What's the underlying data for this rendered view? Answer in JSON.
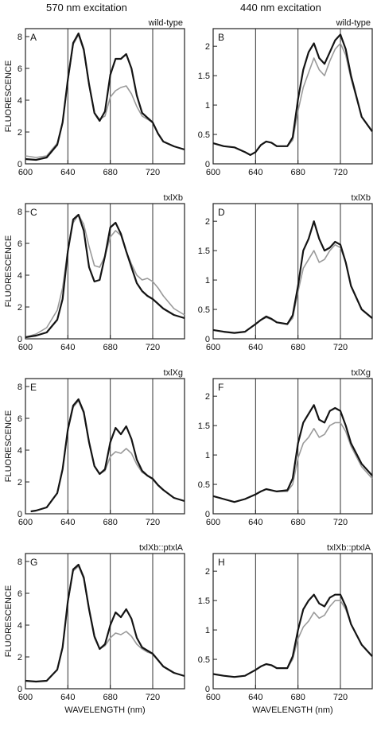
{
  "column_titles": {
    "left": "570 nm excitation",
    "right": "440 nm excitation"
  },
  "colors": {
    "dark_trace": "#141414",
    "light_trace": "#9a9a9a",
    "frame": "#222222"
  },
  "chart_data": [
    {
      "panel": "A",
      "strain": "wild-type",
      "type": "line",
      "xlim": [
        600,
        750
      ],
      "ylim": [
        0,
        8.5
      ],
      "xticks": [
        "600",
        "640",
        "680",
        "720"
      ],
      "yticks": [
        "0",
        "2",
        "4",
        "6",
        "8"
      ],
      "ylabel": "FLUORESCENCE",
      "xlabel": "",
      "vlines": [
        640,
        680,
        720
      ],
      "series": [
        {
          "x": [
            600,
            610,
            620,
            630,
            635,
            640,
            645,
            650,
            655,
            660,
            665,
            670,
            675,
            680,
            685,
            690,
            695,
            700,
            705,
            710,
            715,
            720,
            725,
            730,
            740,
            750
          ],
          "y": [
            0.3,
            0.25,
            0.4,
            1.2,
            2.6,
            5.3,
            7.6,
            8.2,
            7.2,
            5.0,
            3.2,
            2.7,
            3.3,
            5.6,
            6.6,
            6.6,
            6.9,
            6.0,
            4.3,
            3.2,
            2.9,
            2.6,
            1.9,
            1.4,
            1.1,
            0.9
          ]
        },
        {
          "x": [
            600,
            610,
            620,
            630,
            635,
            640,
            645,
            650,
            655,
            660,
            665,
            670,
            675,
            680,
            685,
            690,
            695,
            700,
            705,
            710,
            715,
            720,
            725,
            730,
            740,
            750
          ],
          "y": [
            0.5,
            0.4,
            0.5,
            1.3,
            2.6,
            5.2,
            7.5,
            8.1,
            7.1,
            4.9,
            3.2,
            2.8,
            3.0,
            4.2,
            4.6,
            4.8,
            4.9,
            4.4,
            3.6,
            3.0,
            2.8,
            2.6,
            1.9,
            1.4,
            1.1,
            0.9
          ]
        }
      ]
    },
    {
      "panel": "B",
      "strain": "wild-type",
      "type": "line",
      "xlim": [
        600,
        750
      ],
      "ylim": [
        0,
        2.3
      ],
      "xticks": [
        "600",
        "640",
        "680",
        "720"
      ],
      "yticks": [
        "0",
        "0.5",
        "1",
        "1.5",
        "2"
      ],
      "ylabel": "",
      "xlabel": "",
      "vlines": [
        640,
        680,
        720
      ],
      "series": [
        {
          "x": [
            600,
            610,
            620,
            630,
            635,
            640,
            645,
            650,
            655,
            660,
            670,
            675,
            680,
            685,
            690,
            695,
            700,
            705,
            710,
            715,
            720,
            725,
            730,
            740,
            750
          ],
          "y": [
            0.35,
            0.3,
            0.28,
            0.2,
            0.15,
            0.2,
            0.32,
            0.38,
            0.36,
            0.3,
            0.3,
            0.45,
            1.1,
            1.6,
            1.9,
            2.05,
            1.8,
            1.7,
            1.9,
            2.1,
            2.2,
            1.95,
            1.5,
            0.8,
            0.55
          ]
        },
        {
          "x": [
            600,
            610,
            620,
            630,
            635,
            640,
            645,
            650,
            655,
            660,
            670,
            675,
            680,
            685,
            690,
            695,
            700,
            705,
            710,
            715,
            720,
            725,
            730,
            740,
            750
          ],
          "y": [
            0.35,
            0.3,
            0.28,
            0.2,
            0.15,
            0.2,
            0.32,
            0.38,
            0.36,
            0.3,
            0.3,
            0.4,
            0.9,
            1.3,
            1.55,
            1.8,
            1.6,
            1.5,
            1.75,
            1.95,
            2.05,
            1.85,
            1.45,
            0.8,
            0.55
          ]
        }
      ]
    },
    {
      "panel": "C",
      "strain": "txlXb",
      "type": "line",
      "xlim": [
        600,
        750
      ],
      "ylim": [
        0,
        8.5
      ],
      "xticks": [
        "600",
        "640",
        "680",
        "720"
      ],
      "yticks": [
        "0",
        "2",
        "4",
        "6",
        "8"
      ],
      "ylabel": "FLUORESCENCE",
      "xlabel": "",
      "vlines": [
        640,
        680,
        720
      ],
      "series": [
        {
          "x": [
            600,
            610,
            620,
            630,
            635,
            640,
            645,
            650,
            655,
            660,
            665,
            670,
            675,
            680,
            685,
            690,
            695,
            700,
            705,
            710,
            715,
            720,
            725,
            730,
            740,
            750
          ],
          "y": [
            0.1,
            0.2,
            0.4,
            1.2,
            2.5,
            5.5,
            7.5,
            7.8,
            6.8,
            4.5,
            3.6,
            3.7,
            5.2,
            7.0,
            7.3,
            6.6,
            5.5,
            4.5,
            3.5,
            3.0,
            2.7,
            2.5,
            2.2,
            1.9,
            1.5,
            1.3
          ]
        },
        {
          "x": [
            600,
            610,
            620,
            630,
            635,
            640,
            645,
            650,
            655,
            660,
            665,
            670,
            675,
            680,
            685,
            690,
            695,
            700,
            705,
            710,
            715,
            720,
            725,
            730,
            740,
            750
          ],
          "y": [
            0.1,
            0.3,
            0.7,
            1.8,
            3.2,
            5.6,
            7.3,
            7.8,
            7.2,
            5.8,
            4.6,
            4.5,
            5.2,
            6.4,
            6.8,
            6.5,
            5.5,
            4.7,
            4.0,
            3.7,
            3.8,
            3.6,
            3.2,
            2.7,
            1.9,
            1.5
          ]
        }
      ]
    },
    {
      "panel": "D",
      "strain": "txlXb",
      "type": "line",
      "xlim": [
        600,
        750
      ],
      "ylim": [
        0,
        2.3
      ],
      "xticks": [
        "600",
        "640",
        "680",
        "720"
      ],
      "yticks": [
        "0",
        "0.5",
        "1",
        "1.5",
        "2"
      ],
      "ylabel": "",
      "xlabel": "",
      "vlines": [
        640,
        680,
        720
      ],
      "series": [
        {
          "x": [
            600,
            610,
            620,
            630,
            640,
            645,
            650,
            655,
            660,
            670,
            675,
            680,
            685,
            690,
            695,
            700,
            705,
            710,
            715,
            720,
            725,
            730,
            740,
            750
          ],
          "y": [
            0.15,
            0.12,
            0.1,
            0.12,
            0.25,
            0.32,
            0.38,
            0.34,
            0.28,
            0.25,
            0.4,
            0.9,
            1.5,
            1.7,
            2.0,
            1.7,
            1.5,
            1.55,
            1.65,
            1.6,
            1.3,
            0.9,
            0.5,
            0.35
          ]
        },
        {
          "x": [
            600,
            610,
            620,
            630,
            640,
            645,
            650,
            655,
            660,
            670,
            675,
            680,
            685,
            690,
            695,
            700,
            705,
            710,
            715,
            720,
            725,
            730,
            740,
            750
          ],
          "y": [
            0.15,
            0.12,
            0.1,
            0.12,
            0.25,
            0.32,
            0.36,
            0.33,
            0.28,
            0.25,
            0.35,
            0.8,
            1.2,
            1.35,
            1.5,
            1.3,
            1.35,
            1.5,
            1.6,
            1.55,
            1.3,
            0.9,
            0.5,
            0.35
          ]
        }
      ]
    },
    {
      "panel": "E",
      "strain": "txlXg",
      "type": "line",
      "xlim": [
        600,
        750
      ],
      "ylim": [
        0,
        8.5
      ],
      "xticks": [
        "600",
        "640",
        "680",
        "720"
      ],
      "yticks": [
        "0",
        "2",
        "4",
        "6",
        "8"
      ],
      "ylabel": "FLUORESCENCE",
      "xlabel": "",
      "vlines": [
        640,
        680,
        720
      ],
      "series": [
        {
          "x": [
            605,
            610,
            620,
            630,
            635,
            640,
            645,
            650,
            655,
            660,
            665,
            670,
            675,
            680,
            685,
            690,
            695,
            700,
            705,
            710,
            715,
            720,
            725,
            730,
            740,
            750
          ],
          "y": [
            0.15,
            0.2,
            0.4,
            1.3,
            2.8,
            5.3,
            6.8,
            7.2,
            6.4,
            4.5,
            3.0,
            2.5,
            2.8,
            4.5,
            5.4,
            5.0,
            5.5,
            4.7,
            3.4,
            2.7,
            2.4,
            2.2,
            1.8,
            1.5,
            1.0,
            0.8
          ]
        },
        {
          "x": [
            605,
            610,
            620,
            630,
            635,
            640,
            645,
            650,
            655,
            660,
            665,
            670,
            675,
            680,
            685,
            690,
            695,
            700,
            705,
            710,
            715,
            720,
            725,
            730,
            740,
            750
          ],
          "y": [
            0.15,
            0.2,
            0.4,
            1.3,
            2.8,
            5.2,
            6.7,
            7.1,
            6.3,
            4.4,
            3.0,
            2.5,
            2.7,
            3.6,
            3.9,
            3.8,
            4.1,
            3.8,
            3.1,
            2.6,
            2.4,
            2.2,
            1.8,
            1.5,
            1.0,
            0.8
          ]
        }
      ]
    },
    {
      "panel": "F",
      "strain": "txlXg",
      "type": "line",
      "xlim": [
        600,
        750
      ],
      "ylim": [
        0,
        2.3
      ],
      "xticks": [
        "600",
        "640",
        "680",
        "720"
      ],
      "yticks": [
        "0",
        "0.5",
        "1",
        "1.5",
        "2"
      ],
      "ylabel": "",
      "xlabel": "",
      "vlines": [
        640,
        680,
        720
      ],
      "series": [
        {
          "x": [
            600,
            610,
            620,
            630,
            640,
            645,
            650,
            655,
            660,
            670,
            675,
            680,
            685,
            690,
            695,
            700,
            705,
            710,
            715,
            720,
            725,
            730,
            740,
            750
          ],
          "y": [
            0.3,
            0.25,
            0.2,
            0.25,
            0.33,
            0.38,
            0.42,
            0.4,
            0.38,
            0.4,
            0.6,
            1.2,
            1.55,
            1.7,
            1.85,
            1.6,
            1.55,
            1.75,
            1.8,
            1.75,
            1.5,
            1.2,
            0.85,
            0.65
          ]
        },
        {
          "x": [
            600,
            610,
            620,
            630,
            640,
            645,
            650,
            655,
            660,
            670,
            675,
            680,
            685,
            690,
            695,
            700,
            705,
            710,
            715,
            720,
            725,
            730,
            740,
            750
          ],
          "y": [
            0.3,
            0.25,
            0.2,
            0.25,
            0.33,
            0.38,
            0.42,
            0.4,
            0.38,
            0.38,
            0.5,
            0.95,
            1.2,
            1.3,
            1.45,
            1.3,
            1.35,
            1.5,
            1.55,
            1.55,
            1.4,
            1.15,
            0.8,
            0.6
          ]
        }
      ]
    },
    {
      "panel": "G",
      "strain": "txlXb::ptxlA",
      "type": "line",
      "xlim": [
        600,
        750
      ],
      "ylim": [
        0,
        8.5
      ],
      "xticks": [
        "600",
        "640",
        "680",
        "720"
      ],
      "yticks": [
        "0",
        "2",
        "4",
        "6",
        "8"
      ],
      "ylabel": "FLUORESCENCE",
      "xlabel": "WAVELENGTH (nm)",
      "vlines": [
        640,
        680,
        720
      ],
      "series": [
        {
          "x": [
            600,
            610,
            620,
            630,
            635,
            640,
            645,
            650,
            655,
            660,
            665,
            670,
            675,
            680,
            685,
            690,
            695,
            700,
            705,
            710,
            715,
            720,
            725,
            730,
            740,
            750
          ],
          "y": [
            0.5,
            0.45,
            0.5,
            1.2,
            2.6,
            5.5,
            7.5,
            7.8,
            7.0,
            5.0,
            3.3,
            2.5,
            2.8,
            4.0,
            4.8,
            4.5,
            5.0,
            4.4,
            3.2,
            2.6,
            2.4,
            2.2,
            1.8,
            1.4,
            1.0,
            0.8
          ]
        },
        {
          "x": [
            600,
            610,
            620,
            630,
            635,
            640,
            645,
            650,
            655,
            660,
            665,
            670,
            675,
            680,
            685,
            690,
            695,
            700,
            705,
            710,
            715,
            720,
            725,
            730,
            740,
            750
          ],
          "y": [
            0.5,
            0.45,
            0.5,
            1.2,
            2.6,
            5.4,
            7.4,
            7.7,
            6.9,
            4.9,
            3.2,
            2.5,
            2.7,
            3.2,
            3.5,
            3.4,
            3.6,
            3.3,
            2.8,
            2.5,
            2.3,
            2.2,
            1.8,
            1.4,
            1.0,
            0.8
          ]
        }
      ]
    },
    {
      "panel": "H",
      "strain": "txlXb::ptxlA",
      "type": "line",
      "xlim": [
        600,
        750
      ],
      "ylim": [
        0,
        2.3
      ],
      "xticks": [
        "600",
        "640",
        "680",
        "720"
      ],
      "yticks": [
        "0",
        "0.5",
        "1",
        "1.5",
        "2"
      ],
      "ylabel": "",
      "xlabel": "WAVELENGTH (nm)",
      "vlines": [
        640,
        680,
        720
      ],
      "series": [
        {
          "x": [
            600,
            610,
            620,
            630,
            640,
            645,
            650,
            655,
            660,
            670,
            675,
            680,
            685,
            690,
            695,
            700,
            705,
            710,
            715,
            720,
            725,
            730,
            740,
            750
          ],
          "y": [
            0.25,
            0.22,
            0.2,
            0.22,
            0.32,
            0.38,
            0.42,
            0.4,
            0.35,
            0.35,
            0.55,
            1.0,
            1.35,
            1.5,
            1.6,
            1.45,
            1.4,
            1.55,
            1.6,
            1.6,
            1.4,
            1.1,
            0.75,
            0.55
          ]
        },
        {
          "x": [
            600,
            610,
            620,
            630,
            640,
            645,
            650,
            655,
            660,
            670,
            675,
            680,
            685,
            690,
            695,
            700,
            705,
            710,
            715,
            720,
            725,
            730,
            740,
            750
          ],
          "y": [
            0.25,
            0.22,
            0.2,
            0.22,
            0.32,
            0.38,
            0.42,
            0.4,
            0.35,
            0.35,
            0.5,
            0.85,
            1.05,
            1.15,
            1.3,
            1.2,
            1.25,
            1.4,
            1.5,
            1.5,
            1.35,
            1.1,
            0.75,
            0.55
          ]
        }
      ]
    }
  ]
}
